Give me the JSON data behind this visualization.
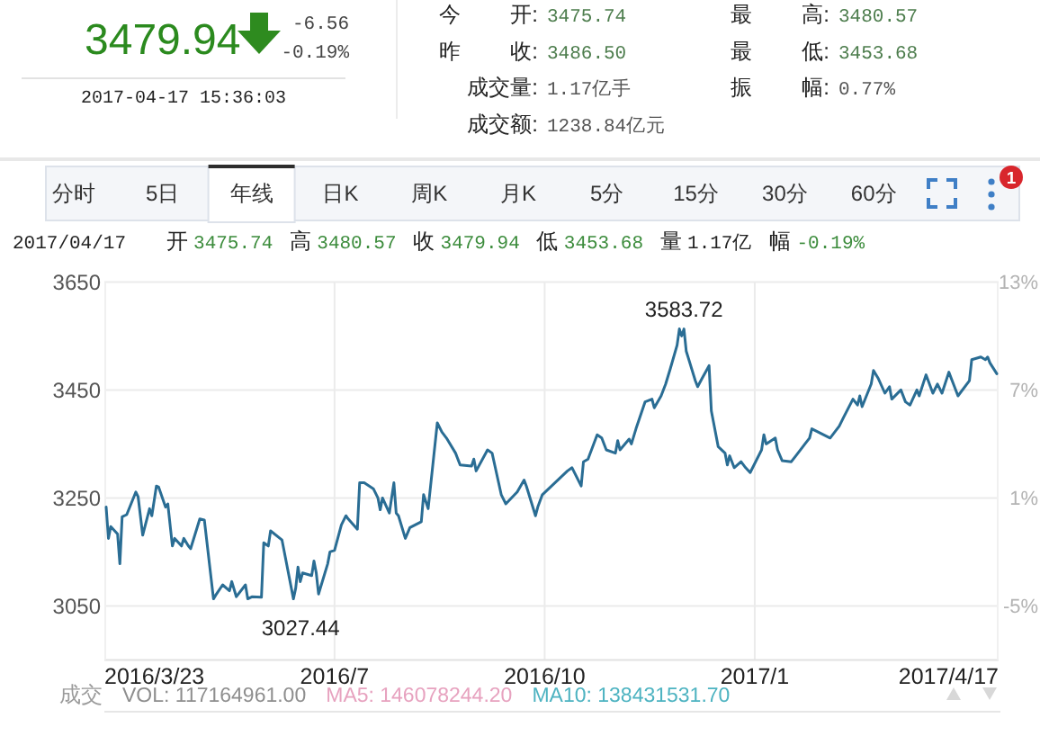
{
  "chart_data": [
    {
      "type": "other",
      "annotations": [
        "3479.94",
        "-6.56",
        "-0.19%",
        "2017-04-17 15:36:03",
        "今开:",
        "3475.74",
        "最高:",
        "3480.57",
        "昨收:",
        "3486.50",
        "最低:",
        "3453.68",
        "成交量:",
        "1.17亿手",
        "振幅:",
        "0.77%",
        "成交额:",
        "1238.84亿元"
      ]
    },
    {
      "type": "other",
      "annotations": [
        "分时",
        "5日",
        "年线",
        "日K",
        "周K",
        "月K",
        "5分",
        "15分",
        "30分",
        "60分",
        "1"
      ]
    },
    {
      "type": "line",
      "subtitle": "2017/04/17 开 3475.74 高 3480.57 收 3479.94 低 3453.68 量 1.17亿 幅 -0.19%",
      "x": [
        "2016-03-23",
        "2016-03-24",
        "2016-03-25",
        "2016-03-28",
        "2016-03-29",
        "2016-03-30",
        "2016-04-01",
        "2016-04-05",
        "2016-04-06",
        "2016-04-08",
        "2016-04-11",
        "2016-04-12",
        "2016-04-14",
        "2016-04-15",
        "2016-04-18",
        "2016-04-19",
        "2016-04-21",
        "2016-04-22",
        "2016-04-25",
        "2016-04-26",
        "2016-04-28",
        "2016-04-29",
        "2016-05-03",
        "2016-05-05",
        "2016-05-09",
        "2016-05-10",
        "2016-05-13",
        "2016-05-16",
        "2016-05-17",
        "2016-05-19",
        "2016-05-23",
        "2016-05-24",
        "2016-05-26",
        "2016-05-30",
        "2016-05-31",
        "2016-06-02",
        "2016-06-03",
        "2016-06-08",
        "2016-06-13",
        "2016-06-14",
        "2016-06-15",
        "2016-06-16",
        "2016-06-17",
        "2016-06-21",
        "2016-06-22",
        "2016-06-23",
        "2016-06-24",
        "2016-06-28",
        "2016-06-29",
        "2016-07-01",
        "2016-07-04",
        "2016-07-06",
        "2016-07-07",
        "2016-07-11",
        "2016-07-12",
        "2016-07-14",
        "2016-07-18",
        "2016-07-20",
        "2016-07-21",
        "2016-07-22",
        "2016-07-25",
        "2016-07-27",
        "2016-07-28",
        "2016-07-29",
        "2016-08-01",
        "2016-08-03",
        "2016-08-08",
        "2016-08-09",
        "2016-08-11",
        "2016-08-15",
        "2016-08-17",
        "2016-08-19",
        "2016-08-23",
        "2016-08-25",
        "2016-08-30",
        "2016-08-31",
        "2016-09-01",
        "2016-09-06",
        "2016-09-08",
        "2016-09-12",
        "2016-09-14",
        "2016-09-19",
        "2016-09-22",
        "2016-09-23",
        "2016-09-27",
        "2016-09-28",
        "2016-09-30",
        "2016-10-11",
        "2016-10-13",
        "2016-10-17",
        "2016-10-18",
        "2016-10-20",
        "2016-10-24",
        "2016-10-26",
        "2016-10-28",
        "2016-11-01",
        "2016-11-02",
        "2016-11-03",
        "2016-11-07",
        "2016-11-08",
        "2016-11-10",
        "2016-11-14",
        "2016-11-17",
        "2016-11-18",
        "2016-11-21",
        "2016-11-23",
        "2016-11-25",
        "2016-11-28",
        "2016-11-29",
        "2016-11-30",
        "2016-12-01",
        "2016-12-02",
        "2016-12-06",
        "2016-12-07",
        "2016-12-09",
        "2016-12-12",
        "2016-12-13",
        "2016-12-14",
        "2016-12-16",
        "2016-12-19",
        "2016-12-20",
        "2016-12-21",
        "2016-12-23",
        "2016-12-26",
        "2016-12-28",
        "2016-12-30",
        "2017-01-04",
        "2017-01-05",
        "2017-01-06",
        "2017-01-10",
        "2017-01-11",
        "2017-01-13",
        "2017-01-17",
        "2017-01-19",
        "2017-01-23",
        "2017-01-25",
        "2017-01-26",
        "2017-02-03",
        "2017-02-07",
        "2017-02-09",
        "2017-02-13",
        "2017-02-15",
        "2017-02-16",
        "2017-02-17",
        "2017-02-21",
        "2017-02-22",
        "2017-02-24",
        "2017-02-27",
        "2017-03-01",
        "2017-03-02",
        "2017-03-06",
        "2017-03-08",
        "2017-03-10",
        "2017-03-13",
        "2017-03-14",
        "2017-03-17",
        "2017-03-20",
        "2017-03-22",
        "2017-03-24",
        "2017-03-27",
        "2017-03-29",
        "2017-03-31",
        "2017-04-05",
        "2017-04-06",
        "2017-04-10",
        "2017-04-12",
        "2017-04-13",
        "2017-04-14",
        "2017-04-17"
      ],
      "values": [
        3233,
        3175,
        3197,
        3183,
        3128,
        3215,
        3219,
        3261,
        3252,
        3181,
        3230,
        3217,
        3272,
        3270,
        3233,
        3239,
        3161,
        3175,
        3161,
        3175,
        3161,
        3156,
        3211,
        3209,
        3063,
        3070,
        3089,
        3078,
        3095,
        3067,
        3089,
        3063,
        3067,
        3066,
        3167,
        3161,
        3189,
        3172,
        3063,
        3083,
        3122,
        3095,
        3111,
        3106,
        3133,
        3111,
        3072,
        3128,
        3150,
        3153,
        3200,
        3217,
        3211,
        3192,
        3278,
        3278,
        3267,
        3250,
        3228,
        3250,
        3222,
        3278,
        3222,
        3217,
        3175,
        3195,
        3206,
        3256,
        3230,
        3389,
        3372,
        3361,
        3333,
        3311,
        3309,
        3322,
        3300,
        3339,
        3333,
        3256,
        3239,
        3261,
        3283,
        3272,
        3217,
        3233,
        3256,
        3300,
        3306,
        3272,
        3317,
        3322,
        3367,
        3361,
        3339,
        3333,
        3356,
        3339,
        3359,
        3350,
        3378,
        3428,
        3433,
        3417,
        3439,
        3461,
        3489,
        3533,
        3563,
        3550,
        3563,
        3522,
        3467,
        3456,
        3472,
        3495,
        3411,
        3389,
        3345,
        3333,
        3311,
        3328,
        3306,
        3317,
        3306,
        3297,
        3339,
        3367,
        3350,
        3361,
        3339,
        3319,
        3317,
        3328,
        3350,
        3361,
        3378,
        3361,
        3383,
        3400,
        3433,
        3422,
        3439,
        3419,
        3461,
        3486,
        3472,
        3444,
        3456,
        3433,
        3450,
        3428,
        3422,
        3450,
        3439,
        3478,
        3444,
        3461,
        3444,
        3483,
        3461,
        3439,
        3467,
        3506,
        3511,
        3506,
        3511,
        3500,
        3480
      ],
      "color": "#2a6d94",
      "xlim": [
        "2016-03-23",
        "2017-04-17"
      ],
      "xticks": [
        {
          "value": "2016-03-23",
          "label": "2016/3/23"
        },
        {
          "value": "2016-07-01",
          "label": "2016/7"
        },
        {
          "value": "2016-10-01",
          "label": "2016/10"
        },
        {
          "value": "2017-01-01",
          "label": "2017/1"
        },
        {
          "value": "2017-04-17",
          "label": "2017/4/17"
        }
      ],
      "ylim": [
        2950,
        3650
      ],
      "yticks": [
        3050,
        3250,
        3450,
        3650
      ],
      "y2lim": [
        -8,
        13
      ],
      "y2ticks": [
        {
          "value": -5,
          "label": "-5%"
        },
        {
          "value": 1,
          "label": "1%"
        },
        {
          "value": 7,
          "label": "7%"
        },
        {
          "value": 13,
          "label": "13%"
        }
      ],
      "grid": true,
      "annotations": [
        "3583.72",
        "3027.44",
        "成交",
        "VOL: 117164961.00",
        "MA5: 146078244.20",
        "MA10: 138431531.70"
      ]
    }
  ]
}
